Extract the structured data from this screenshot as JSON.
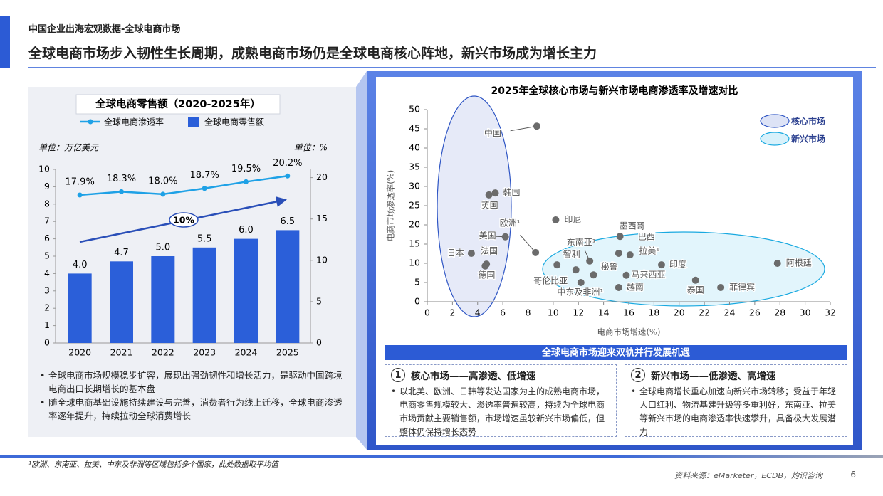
{
  "header": {
    "section": "中国企业出海宏观数据-全球电商市场",
    "title": "全球电商市场步入韧性生长周期，成熟电商市场仍是全球电商核心阵地，新兴市场成为增长主力"
  },
  "chart_data": [
    {
      "type": "combo",
      "title": "全球电商零售额（2020-2025年）",
      "ylabel": "单位：万亿美元",
      "y2label": "单位：%",
      "categories": [
        "2020",
        "2021",
        "2022",
        "2023",
        "2024",
        "2025"
      ],
      "series": [
        {
          "name": "全球电商零售额",
          "type": "bar",
          "color": "#2b5fd9",
          "values": [
            4.0,
            4.7,
            5.0,
            5.5,
            6.0,
            6.5
          ],
          "value_labels": [
            "4.0",
            "4.7",
            "5.0",
            "5.5",
            "6.0",
            "6.5"
          ]
        },
        {
          "name": "全球电商渗透率",
          "type": "line",
          "color": "#1ea1e6",
          "axis": "y2",
          "values": [
            17.9,
            18.3,
            18.0,
            18.7,
            19.5,
            20.2
          ],
          "value_labels": [
            "17.9%",
            "18.3%",
            "18.0%",
            "18.7%",
            "19.5%",
            "20.2%"
          ]
        }
      ],
      "ylim": [
        0,
        10
      ],
      "yticks": [
        0,
        1,
        2,
        3,
        4,
        5,
        6,
        7,
        8,
        9,
        10
      ],
      "y2lim": [
        0,
        21
      ],
      "y2ticks": [
        0,
        5,
        10,
        15,
        20
      ],
      "annotation": "10%",
      "annotation_color": "#2a4fb8",
      "notes": [
        "全球电商市场规模稳步扩容，展现出强劲韧性和增长活力，是驱动中国跨境电商出口长期增长的基本盘",
        "随全球电商基础设施持续建设与完善，消费者行为线上迁移，全球电商渗透率逐年提升，持续拉动全球消费增长"
      ]
    },
    {
      "type": "scatter",
      "title": "2025年全球核心市场与新兴市场电商渗透率及增速对比",
      "xlabel": "电商市场增速(%)",
      "ylabel": "电商市场渗透率(%)",
      "xlim": [
        0,
        32
      ],
      "xticks": [
        0,
        2,
        4,
        6,
        8,
        10,
        12,
        14,
        16,
        18,
        20,
        22,
        24,
        26,
        28,
        30,
        32
      ],
      "ylim": [
        0,
        50
      ],
      "yticks": [
        0,
        5,
        10,
        15,
        20,
        25,
        30,
        35,
        40,
        45,
        50
      ],
      "point_color": "#6b6b6b",
      "legend": "upper right",
      "series": [
        {
          "name": "核心市场",
          "color": "#dde3f6",
          "edge_color": "#2e55c4",
          "labels": [
            "中国",
            "韩国",
            "英国",
            "欧洲¹",
            "美国",
            "日本",
            "法国",
            "德国"
          ],
          "x": [
            8.7,
            5.4,
            4.9,
            8.6,
            6.2,
            3.5,
            4.7,
            4.6
          ],
          "y": [
            45.7,
            28.3,
            27.8,
            12.8,
            16.9,
            12.6,
            9.8,
            9.3
          ]
        },
        {
          "name": "新兴市场",
          "color": "#d8f1fb",
          "edge_color": "#19a9e0",
          "labels": [
            "印尼",
            "墨西哥",
            "巴西",
            "拉美¹",
            "东南亚¹",
            "智利",
            "哥伦比亚",
            "秘鲁",
            "中东及非洲¹",
            "越南",
            "马来西亚",
            "印度",
            "泰国",
            "菲律宾",
            "阿根廷"
          ],
          "x": [
            10.2,
            15.3,
            15.2,
            16.1,
            12.9,
            11.8,
            10.3,
            13.2,
            12.2,
            15.2,
            15.8,
            18.6,
            21.3,
            23.3,
            27.8
          ],
          "y": [
            21.3,
            17.0,
            12.6,
            12.2,
            10.6,
            8.3,
            9.6,
            7.0,
            5.0,
            3.7,
            6.9,
            9.6,
            5.6,
            3.7,
            10.0
          ]
        }
      ]
    }
  ],
  "summary": {
    "title": "全球电商市场迎来双轨并行发展机遇",
    "cards": [
      {
        "number": "1",
        "title": "核心市场——高渗透、低增速",
        "text": "以北美、欧洲、日韩等发达国家为主的成熟电商市场，电商零售规模较大、渗透率普遍较高，持续为全球电商市场贡献主要销售额，市场增速虽较新兴市场偏低，但整体仍保持增长态势"
      },
      {
        "number": "2",
        "title": "新兴市场——低渗透、高增速",
        "text": "全球电商增长重心加速向新兴市场转移；受益于年轻人口红利、物流基建升级等多重利好，东南亚、拉美等新兴市场的电商渗透率快速攀升，具备极大发展潜力"
      }
    ]
  },
  "footnote": "¹欧洲、东南亚、拉美、中东及非洲等区域包括多个国家，此处数据取平均值",
  "source": "资料来源：eMarketer，ECDB，灼识咨询",
  "page": "6"
}
